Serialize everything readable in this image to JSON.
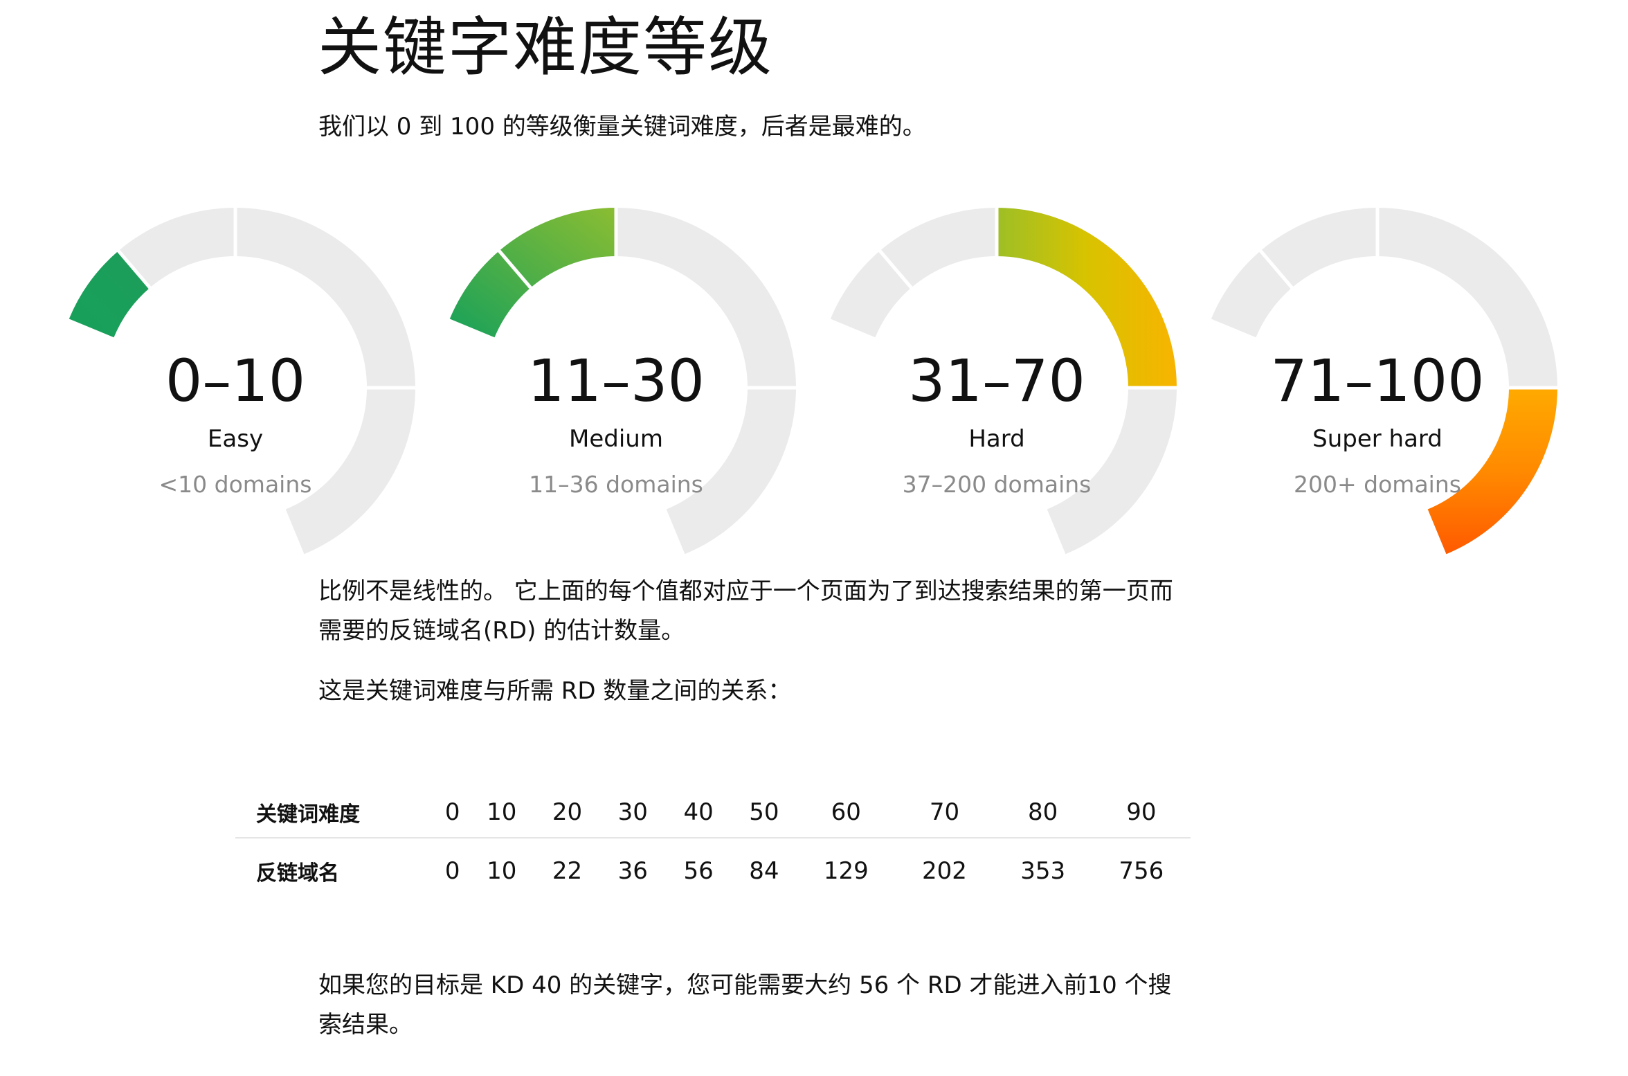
{
  "page": {
    "title": "关键字难度等级",
    "intro": "我们以 0 到 100 的等级衡量关键词难度，后者是最难的。"
  },
  "gauges": [
    {
      "range": "0–10",
      "label": "Easy",
      "domains": "<10 domains",
      "level_start": 0.0,
      "level_end": 0.12,
      "colors": [
        "#17a15a",
        "#1d9d5a"
      ]
    },
    {
      "range": "11–30",
      "label": "Medium",
      "domains": "11–36 domains",
      "level_start": 0.0,
      "level_end": 0.3,
      "colors": [
        "#17a15a",
        "#8bbd32"
      ]
    },
    {
      "range": "31–70",
      "label": "Hard",
      "domains": "37–200 domains",
      "level_start": 0.3,
      "level_end": 0.7,
      "colors": [
        "#9dbf26",
        "#d8c300",
        "#f8b400"
      ]
    },
    {
      "range": "71–100",
      "label": "Super hard",
      "domains": "200+ domains",
      "level_start": 0.7,
      "level_end": 1.0,
      "colors": [
        "#ffaa00",
        "#ff8a00",
        "#ff5a00"
      ]
    }
  ],
  "body": {
    "para1": "比例不是线性的。 它上面的每个值都对应于一个页面为了到达搜索结果的第一页而需要的反链域名(RD) 的估计数量。",
    "para2": "这是关键词难度与所需 RD 数量之间的关系：",
    "para3": "如果您的目标是 KD 40 的关键字，您可能需要大约 56 个 RD 才能进入前10 个搜索结果。"
  },
  "table": {
    "kd_label": "关键词难度",
    "kd_values": [
      "0",
      "10",
      "20",
      "30",
      "40",
      "50",
      "60",
      "70",
      "80",
      "90"
    ],
    "rd_label": "反链域名",
    "rd_values": [
      "0",
      "10",
      "22",
      "36",
      "56",
      "84",
      "129",
      "202",
      "353",
      "756"
    ]
  },
  "colors": {
    "track": "#ebebeb",
    "text": "#111111",
    "muted": "#8a8a8a",
    "divider": "#e5e5e5"
  }
}
